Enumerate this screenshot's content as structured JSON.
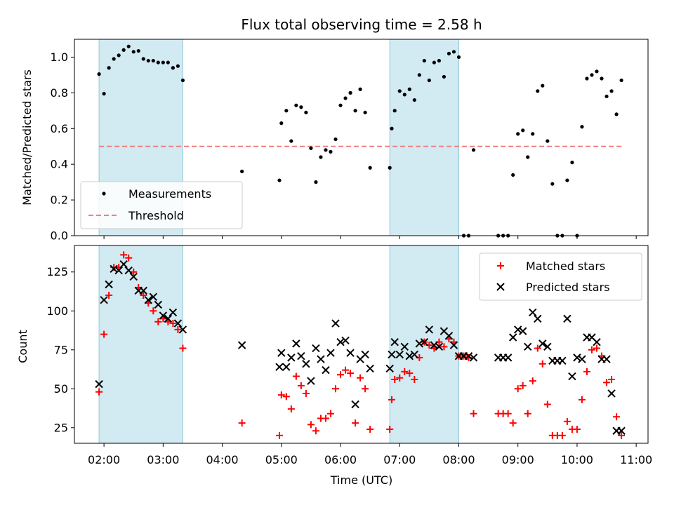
{
  "chart_data": [
    {
      "type": "scatter",
      "title": "Flux total observing time = 2.58 h",
      "xlabel": "",
      "ylabel": "Matched/Predicted stars",
      "ylim": [
        0,
        1.1
      ],
      "yticks": [
        0.0,
        0.2,
        0.4,
        0.6,
        0.8,
        1.0
      ],
      "ytick_labels": [
        "0.0",
        "0.2",
        "0.4",
        "0.6",
        "0.8",
        "1.0"
      ],
      "shaded_regions": [
        [
          "01:55",
          "03:20"
        ],
        [
          "06:50",
          "08:00"
        ]
      ],
      "colors": {
        "measurements": "#000000",
        "threshold": "#f08080",
        "shade": "#add8e6"
      },
      "legend": {
        "placement": "lower-left",
        "entries": [
          "Measurements",
          "Threshold"
        ]
      },
      "series": [
        {
          "name": "Measurements",
          "x": [
            "01:55",
            "02:00",
            "02:05",
            "02:10",
            "02:15",
            "02:20",
            "02:25",
            "02:30",
            "02:35",
            "02:40",
            "02:45",
            "02:50",
            "02:55",
            "03:00",
            "03:05",
            "03:10",
            "03:15",
            "03:20",
            "04:20",
            "04:58",
            "05:00",
            "05:05",
            "05:10",
            "05:15",
            "05:20",
            "05:25",
            "05:30",
            "05:35",
            "05:40",
            "05:45",
            "05:50",
            "05:55",
            "06:00",
            "06:05",
            "06:10",
            "06:15",
            "06:20",
            "06:25",
            "06:30",
            "06:50",
            "06:52",
            "06:55",
            "07:00",
            "07:05",
            "07:10",
            "07:15",
            "07:20",
            "07:25",
            "07:30",
            "07:35",
            "07:40",
            "07:45",
            "07:50",
            "07:55",
            "08:00",
            "08:05",
            "08:10",
            "08:15",
            "08:40",
            "08:45",
            "08:50",
            "08:55",
            "09:00",
            "09:05",
            "09:10",
            "09:15",
            "09:20",
            "09:25",
            "09:30",
            "09:35",
            "09:40",
            "09:45",
            "09:50",
            "09:55",
            "10:00",
            "10:05",
            "10:10",
            "10:15",
            "10:20",
            "10:25",
            "10:30",
            "10:35",
            "10:40",
            "10:45"
          ],
          "y": [
            0.905,
            0.795,
            0.94,
            0.99,
            1.01,
            1.04,
            1.06,
            1.03,
            1.035,
            0.99,
            0.98,
            0.98,
            0.97,
            0.97,
            0.97,
            0.94,
            0.95,
            0.87,
            0.36,
            0.31,
            0.63,
            0.7,
            0.53,
            0.73,
            0.72,
            0.69,
            0.49,
            0.3,
            0.44,
            0.48,
            0.47,
            0.54,
            0.73,
            0.77,
            0.8,
            0.7,
            0.82,
            0.69,
            0.38,
            0.38,
            0.6,
            0.7,
            0.81,
            0.79,
            0.82,
            0.76,
            0.9,
            0.98,
            0.87,
            0.97,
            0.98,
            0.89,
            1.02,
            1.03,
            1.0,
            0.0,
            0.0,
            0.48,
            0.0,
            0.0,
            0.0,
            0.34,
            0.57,
            0.59,
            0.44,
            0.57,
            0.81,
            0.84,
            0.53,
            0.29,
            0.0,
            0.0,
            0.31,
            0.41,
            0.0,
            0.61,
            0.88,
            0.9,
            0.92,
            0.88,
            0.78,
            0.81,
            0.68,
            0.87
          ]
        },
        {
          "name": "Threshold",
          "x": [
            "01:55",
            "10:45"
          ],
          "y": [
            0.5,
            0.5
          ]
        }
      ]
    },
    {
      "type": "scatter",
      "xlabel": "Time (UTC)",
      "ylabel": "Count",
      "ylim": [
        15,
        142
      ],
      "yticks": [
        25,
        50,
        75,
        100,
        125
      ],
      "xticks": [
        "02:00",
        "03:00",
        "04:00",
        "05:00",
        "06:00",
        "07:00",
        "08:00",
        "09:00",
        "10:00",
        "11:00"
      ],
      "colors": {
        "matched": "#ff0000",
        "predicted": "#000000"
      },
      "legend": {
        "placement": "upper-right",
        "entries": [
          "Matched stars",
          "Predicted stars"
        ]
      },
      "series": [
        {
          "name": "Matched stars",
          "x": [
            "01:55",
            "02:00",
            "02:05",
            "02:10",
            "02:15",
            "02:20",
            "02:25",
            "02:30",
            "02:35",
            "02:40",
            "02:45",
            "02:50",
            "02:55",
            "03:00",
            "03:05",
            "03:10",
            "03:15",
            "03:20",
            "04:20",
            "04:58",
            "05:00",
            "05:05",
            "05:10",
            "05:15",
            "05:20",
            "05:25",
            "05:30",
            "05:35",
            "05:40",
            "05:45",
            "05:50",
            "05:55",
            "06:00",
            "06:05",
            "06:10",
            "06:15",
            "06:20",
            "06:25",
            "06:30",
            "06:50",
            "06:52",
            "06:55",
            "07:00",
            "07:05",
            "07:10",
            "07:15",
            "07:20",
            "07:25",
            "07:30",
            "07:35",
            "07:40",
            "07:45",
            "07:50",
            "07:55",
            "08:00",
            "08:05",
            "08:10",
            "08:15",
            "08:40",
            "08:45",
            "08:50",
            "08:55",
            "09:00",
            "09:05",
            "09:10",
            "09:15",
            "09:20",
            "09:25",
            "09:30",
            "09:35",
            "09:40",
            "09:45",
            "09:50",
            "09:55",
            "10:00",
            "10:05",
            "10:10",
            "10:15",
            "10:20",
            "10:25",
            "10:30",
            "10:35",
            "10:40",
            "10:45"
          ],
          "y": [
            48,
            85,
            110,
            128,
            128,
            136,
            134,
            125,
            115,
            110,
            105,
            100,
            93,
            95,
            93,
            92,
            88,
            76,
            28,
            20,
            46,
            45,
            37,
            58,
            52,
            47,
            27,
            23,
            31,
            31,
            34,
            50,
            59,
            62,
            60,
            28,
            57,
            50,
            24,
            24,
            43,
            56,
            57,
            61,
            60,
            56,
            70,
            80,
            78,
            76,
            80,
            77,
            82,
            80,
            71,
            71,
            70,
            34,
            34,
            34,
            34,
            28,
            50,
            52,
            34,
            55,
            76,
            66,
            40,
            20,
            20,
            20,
            29,
            24,
            24,
            43,
            61,
            75,
            76,
            71,
            54,
            56,
            32,
            20
          ]
        },
        {
          "name": "Predicted stars",
          "x": [
            "01:55",
            "02:00",
            "02:05",
            "02:10",
            "02:15",
            "02:20",
            "02:25",
            "02:30",
            "02:35",
            "02:40",
            "02:45",
            "02:50",
            "02:55",
            "03:00",
            "03:05",
            "03:10",
            "03:15",
            "03:20",
            "04:20",
            "04:58",
            "05:00",
            "05:05",
            "05:10",
            "05:15",
            "05:20",
            "05:25",
            "05:30",
            "05:35",
            "05:40",
            "05:45",
            "05:50",
            "05:55",
            "06:00",
            "06:05",
            "06:10",
            "06:15",
            "06:20",
            "06:25",
            "06:30",
            "06:50",
            "06:52",
            "06:55",
            "07:00",
            "07:05",
            "07:10",
            "07:15",
            "07:20",
            "07:25",
            "07:30",
            "07:35",
            "07:40",
            "07:45",
            "07:50",
            "07:55",
            "08:00",
            "08:05",
            "08:10",
            "08:15",
            "08:40",
            "08:45",
            "08:50",
            "08:55",
            "09:00",
            "09:05",
            "09:10",
            "09:15",
            "09:20",
            "09:25",
            "09:30",
            "09:35",
            "09:40",
            "09:45",
            "09:50",
            "09:55",
            "10:00",
            "10:05",
            "10:10",
            "10:15",
            "10:20",
            "10:25",
            "10:30",
            "10:35",
            "10:40",
            "10:45"
          ],
          "y": [
            53,
            107,
            117,
            127,
            126,
            130,
            126,
            122,
            113,
            113,
            107,
            109,
            104,
            97,
            95,
            99,
            92,
            88,
            78,
            64,
            73,
            64,
            70,
            79,
            71,
            66,
            55,
            76,
            69,
            62,
            73,
            92,
            80,
            81,
            73,
            40,
            69,
            72,
            63,
            63,
            72,
            80,
            72,
            77,
            71,
            72,
            79,
            80,
            88,
            78,
            77,
            87,
            84,
            78,
            71,
            71,
            71,
            70,
            70,
            70,
            70,
            83,
            88,
            87,
            77,
            99,
            95,
            79,
            77,
            68,
            68,
            68,
            95,
            58,
            70,
            69,
            83,
            83,
            80,
            69,
            69,
            47,
            23,
            23
          ]
        }
      ]
    }
  ]
}
